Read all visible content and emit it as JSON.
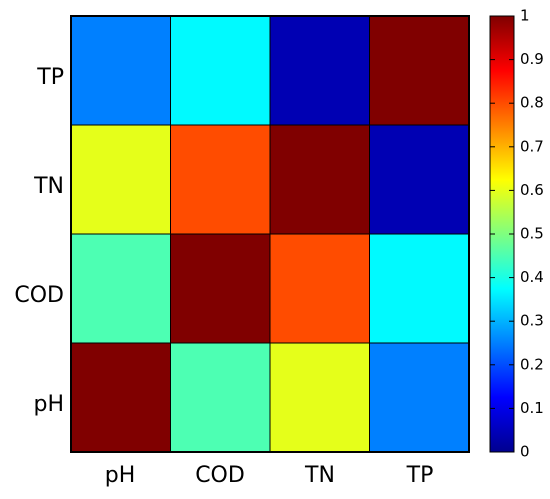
{
  "chart_data": {
    "type": "heatmap",
    "x_categories": [
      "pH",
      "COD",
      "TN",
      "TP"
    ],
    "y_categories": [
      "pH",
      "COD",
      "TN",
      "TP"
    ],
    "values": [
      [
        1.0,
        0.45,
        0.6,
        0.25
      ],
      [
        0.45,
        1.0,
        0.8,
        0.37
      ],
      [
        0.6,
        0.8,
        1.0,
        0.05
      ],
      [
        0.25,
        0.37,
        0.05,
        1.0
      ]
    ],
    "colormap": "jet",
    "colorbar": {
      "range": [
        0,
        1
      ],
      "ticks": [
        "0",
        "0.1",
        "0.2",
        "0.3",
        "0.4",
        "0.5",
        "0.6",
        "0.7",
        "0.8",
        "0.9",
        "1"
      ],
      "position": "right"
    }
  }
}
